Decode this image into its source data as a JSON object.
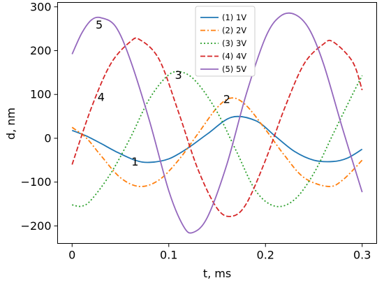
{
  "chart_data": {
    "type": "line",
    "xlabel": "t, ms",
    "ylabel": "d, nm",
    "xlim": [
      -0.015,
      0.315
    ],
    "ylim": [
      -240,
      310
    ],
    "xticks": [
      0,
      0.1,
      0.2,
      0.3
    ],
    "xtick_labels": [
      "0",
      "0.1",
      "0.2",
      "0.3"
    ],
    "yticks": [
      -200,
      -100,
      0,
      100,
      200,
      300
    ],
    "ytick_labels": [
      "−200",
      "−100",
      "0",
      "100",
      "200",
      "300"
    ],
    "grid": false,
    "legend": "top-center",
    "series": [
      {
        "name": "(1) 1V",
        "color": "#1f77b4",
        "dash": "solid",
        "x": [
          0,
          0.015,
          0.03,
          0.045,
          0.065,
          0.08,
          0.1,
          0.12,
          0.14,
          0.165,
          0.19,
          0.21,
          0.23,
          0.25,
          0.27,
          0.285,
          0.3
        ],
        "y": [
          18,
          5,
          -12,
          -30,
          -50,
          -55,
          -47,
          -22,
          10,
          48,
          40,
          5,
          -30,
          -50,
          -53,
          -45,
          -25
        ]
      },
      {
        "name": "(2) 2V",
        "color": "#ff7f0e",
        "dash": "dashdot",
        "x": [
          0,
          0.015,
          0.03,
          0.05,
          0.07,
          0.09,
          0.11,
          0.13,
          0.15,
          0.165,
          0.18,
          0.2,
          0.22,
          0.24,
          0.265,
          0.28,
          0.3
        ],
        "y": [
          25,
          0,
          -40,
          -90,
          -110,
          -95,
          -50,
          10,
          70,
          92,
          75,
          20,
          -40,
          -90,
          -110,
          -95,
          -50
        ]
      },
      {
        "name": "(3) 3V",
        "color": "#2ca02c",
        "dash": "dotted",
        "x": [
          0,
          0.01,
          0.02,
          0.04,
          0.06,
          0.08,
          0.1,
          0.115,
          0.13,
          0.15,
          0.17,
          0.19,
          0.21,
          0.23,
          0.25,
          0.27,
          0.29,
          0.3
        ],
        "y": [
          -152,
          -155,
          -140,
          -80,
          0,
          90,
          145,
          150,
          125,
          60,
          -30,
          -120,
          -155,
          -140,
          -80,
          10,
          100,
          143
        ]
      },
      {
        "name": "(4) 4V",
        "color": "#d62728",
        "dash": "dashed",
        "x": [
          0,
          0.02,
          0.04,
          0.06,
          0.07,
          0.09,
          0.11,
          0.13,
          0.15,
          0.165,
          0.18,
          0.2,
          0.22,
          0.24,
          0.26,
          0.27,
          0.29,
          0.3
        ],
        "y": [
          -60,
          70,
          170,
          220,
          225,
          180,
          60,
          -70,
          -160,
          -178,
          -150,
          -50,
          70,
          170,
          215,
          220,
          175,
          110
        ]
      },
      {
        "name": "(5) 5V",
        "color": "#9467bd",
        "dash": "solid",
        "x": [
          0,
          0.01,
          0.02,
          0.03,
          0.045,
          0.06,
          0.08,
          0.1,
          0.115,
          0.125,
          0.14,
          0.16,
          0.18,
          0.2,
          0.215,
          0.23,
          0.245,
          0.26,
          0.28,
          0.3
        ],
        "y": [
          192,
          240,
          270,
          275,
          255,
          180,
          40,
          -120,
          -200,
          -215,
          -180,
          -60,
          100,
          230,
          278,
          283,
          250,
          170,
          20,
          -123
        ]
      }
    ],
    "annotations": [
      {
        "text": "1",
        "x": 0.065,
        "y": -53
      },
      {
        "text": "2",
        "x": 0.16,
        "y": 90
      },
      {
        "text": "3",
        "x": 0.11,
        "y": 145
      },
      {
        "text": "4",
        "x": 0.03,
        "y": 95
      },
      {
        "text": "5",
        "x": 0.028,
        "y": 260
      }
    ]
  }
}
